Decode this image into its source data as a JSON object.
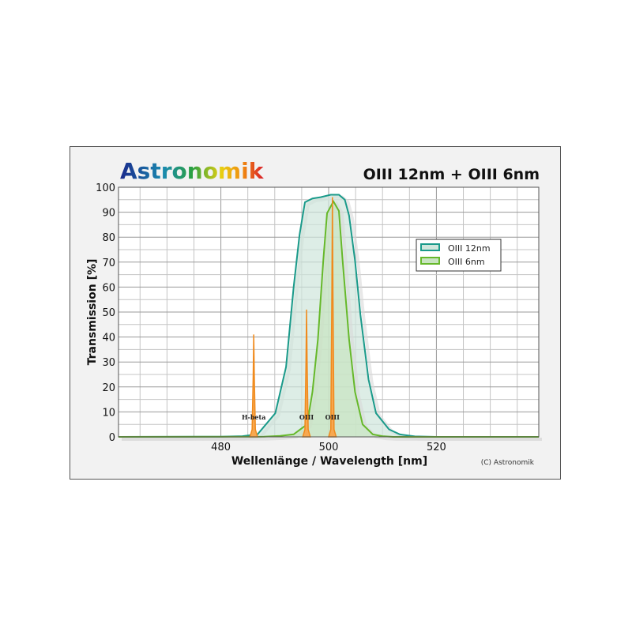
{
  "logo_text": "Astronomik",
  "chart_data": {
    "type": "line",
    "title": "OIII 12nm + OIII 6nm",
    "xlabel": "Wellenlänge / Wavelength [nm]",
    "ylabel": "Transmission [%]",
    "xlim": [
      461,
      539
    ],
    "ylim": [
      0,
      100
    ],
    "xticks": [
      480,
      500,
      520
    ],
    "yticks": [
      0,
      10,
      20,
      30,
      40,
      50,
      60,
      70,
      80,
      90,
      100
    ],
    "grid": true,
    "grid_minor_x_step": 5,
    "grid_minor_y_step": 5,
    "legend_position": "top-right",
    "copyright": "(C) Astronomik",
    "series": [
      {
        "name": "OIII 12nm",
        "color": "#1a9a8a",
        "fill": "#cfe6dc",
        "points": [
          [
            461,
            0
          ],
          [
            480,
            0.1
          ],
          [
            484,
            0.3
          ],
          [
            486.8,
            1
          ],
          [
            490.1,
            9.5
          ],
          [
            492.1,
            28
          ],
          [
            493.5,
            60
          ],
          [
            494.6,
            81
          ],
          [
            495.6,
            94
          ],
          [
            497,
            95.5
          ],
          [
            498.5,
            96
          ],
          [
            500.4,
            97
          ],
          [
            501.9,
            97
          ],
          [
            503,
            95
          ],
          [
            503.8,
            88.6
          ],
          [
            504.9,
            70.6
          ],
          [
            505.9,
            49
          ],
          [
            507.4,
            23
          ],
          [
            508.8,
            9.5
          ],
          [
            511.2,
            3
          ],
          [
            513.2,
            1
          ],
          [
            516,
            0.2
          ],
          [
            520,
            0
          ],
          [
            539,
            0
          ]
        ]
      },
      {
        "name": "OIII 6nm",
        "color": "#66b82a",
        "fill": "#c8e4c0",
        "points": [
          [
            461,
            0
          ],
          [
            488,
            0.1
          ],
          [
            491,
            0.4
          ],
          [
            493.5,
            1
          ],
          [
            496,
            5
          ],
          [
            497,
            18
          ],
          [
            498,
            39
          ],
          [
            499,
            70.6
          ],
          [
            499.7,
            89.6
          ],
          [
            500.9,
            94.3
          ],
          [
            501.9,
            90.5
          ],
          [
            502.6,
            70.6
          ],
          [
            503.8,
            39
          ],
          [
            504.9,
            18
          ],
          [
            506.3,
            5
          ],
          [
            508.2,
            1
          ],
          [
            510,
            0.3
          ],
          [
            512,
            0
          ],
          [
            539,
            0
          ]
        ]
      }
    ],
    "emission_lines": [
      {
        "label": "H-beta",
        "wavelength": 486.1,
        "peak": 41
      },
      {
        "label": "OIII",
        "wavelength": 495.9,
        "peak": 51
      },
      {
        "label": "OIII",
        "wavelength": 500.7,
        "peak": 96
      }
    ],
    "emission_color": "#f08a1c"
  }
}
